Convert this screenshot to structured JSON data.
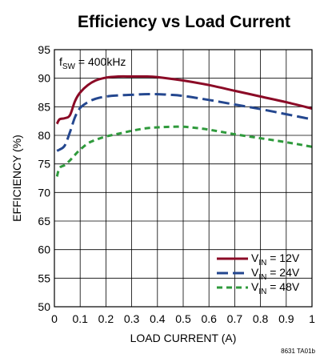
{
  "chart_data": {
    "type": "line",
    "title": "Efficiency vs Load Current",
    "xlabel": "LOAD CURRENT (A)",
    "ylabel": "EFFICIENCY (%)",
    "xlim": [
      0,
      1
    ],
    "ylim": [
      50,
      95
    ],
    "x_ticks": [
      "0",
      "0.1",
      "0.2",
      "0.3",
      "0.4",
      "0.5",
      "0.6",
      "0.7",
      "0.8",
      "0.9",
      "1"
    ],
    "y_ticks": [
      "50",
      "55",
      "60",
      "65",
      "70",
      "75",
      "80",
      "85",
      "90",
      "95"
    ],
    "grid": true,
    "legend_position": "bottom-right",
    "annotation": {
      "main": "f",
      "sub": "SW",
      "rest": " = 400kHz"
    },
    "figure_code": "8631 TA01b",
    "series": [
      {
        "legend_main": "V",
        "legend_sub": "IN",
        "legend_rest": " = 12V",
        "color": "#8b0a26",
        "dash": "solid",
        "x": [
          0.01,
          0.02,
          0.04,
          0.06,
          0.08,
          0.1,
          0.13,
          0.16,
          0.2,
          0.25,
          0.3,
          0.35,
          0.4,
          0.5,
          0.6,
          0.7,
          0.8,
          0.9,
          1.0
        ],
        "y": [
          82.0,
          82.8,
          83.0,
          83.5,
          86.0,
          87.5,
          88.8,
          89.6,
          90.1,
          90.3,
          90.3,
          90.3,
          90.2,
          89.6,
          88.8,
          87.8,
          86.8,
          85.8,
          84.7
        ]
      },
      {
        "legend_main": "V",
        "legend_sub": "IN",
        "legend_rest": " = 24V",
        "color": "#24478f",
        "dash": "long",
        "x": [
          0.01,
          0.02,
          0.04,
          0.06,
          0.08,
          0.1,
          0.13,
          0.16,
          0.2,
          0.25,
          0.3,
          0.35,
          0.4,
          0.45,
          0.5,
          0.6,
          0.7,
          0.8,
          0.9,
          1.0
        ],
        "y": [
          77.3,
          77.5,
          78.2,
          80.5,
          83.2,
          84.8,
          85.8,
          86.4,
          86.8,
          87.0,
          87.1,
          87.2,
          87.2,
          87.1,
          86.9,
          86.2,
          85.4,
          84.6,
          83.7,
          82.8
        ]
      },
      {
        "legend_main": "V",
        "legend_sub": "IN",
        "legend_rest": " = 48V",
        "color": "#2f9a3c",
        "dash": "short",
        "x": [
          0.01,
          0.02,
          0.04,
          0.06,
          0.08,
          0.1,
          0.13,
          0.16,
          0.2,
          0.25,
          0.3,
          0.35,
          0.4,
          0.45,
          0.5,
          0.55,
          0.6,
          0.7,
          0.8,
          0.9,
          1.0
        ],
        "y": [
          72.8,
          74.3,
          74.8,
          75.6,
          76.6,
          77.5,
          78.6,
          79.2,
          79.8,
          80.3,
          80.8,
          81.2,
          81.4,
          81.5,
          81.5,
          81.3,
          81.0,
          80.2,
          79.5,
          78.8,
          78.0
        ]
      }
    ]
  }
}
